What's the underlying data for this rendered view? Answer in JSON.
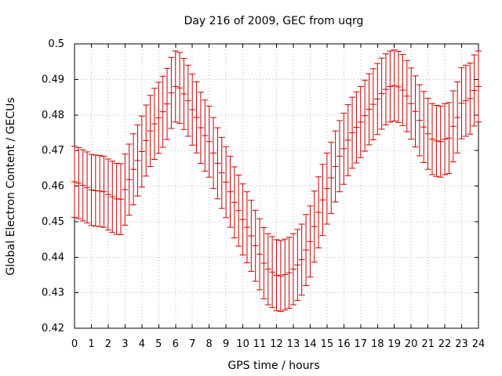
{
  "chart_data": {
    "type": "error_bar",
    "title": "Day 216 of 2009, GEC from uqrg",
    "xlabel": "GPS time / hours",
    "ylabel": "Global Electron Content / GECUs",
    "xlim": [
      0,
      24
    ],
    "ylim": [
      0.42,
      0.5
    ],
    "x_ticks": [
      0,
      1,
      2,
      3,
      4,
      5,
      6,
      7,
      8,
      9,
      10,
      11,
      12,
      13,
      14,
      15,
      16,
      17,
      18,
      19,
      20,
      21,
      22,
      23,
      24
    ],
    "y_ticks": [
      0.42,
      0.43,
      0.44,
      0.45,
      0.46,
      0.47,
      0.48,
      0.49,
      0.5
    ],
    "y_tick_labels": [
      "0.42",
      "0.43",
      "0.44",
      "0.45",
      "0.46",
      "0.47",
      "0.48",
      "0.49",
      "0.5"
    ],
    "grid": true,
    "series_color": "#cc0000",
    "series": [
      {
        "name": "GEC",
        "x": [
          0.0,
          0.25,
          0.5,
          0.75,
          1.0,
          1.25,
          1.5,
          1.75,
          2.0,
          2.25,
          2.5,
          2.75,
          3.0,
          3.25,
          3.5,
          3.75,
          4.0,
          4.25,
          4.5,
          4.75,
          5.0,
          5.25,
          5.5,
          5.75,
          6.0,
          6.25,
          6.5,
          6.75,
          7.0,
          7.25,
          7.5,
          7.75,
          8.0,
          8.25,
          8.5,
          8.75,
          9.0,
          9.25,
          9.5,
          9.75,
          10.0,
          10.25,
          10.5,
          10.75,
          11.0,
          11.25,
          11.5,
          11.75,
          12.0,
          12.25,
          12.5,
          12.75,
          13.0,
          13.25,
          13.5,
          13.75,
          14.0,
          14.25,
          14.5,
          14.75,
          15.0,
          15.25,
          15.5,
          15.75,
          16.0,
          16.25,
          16.5,
          16.75,
          17.0,
          17.25,
          17.5,
          17.75,
          18.0,
          18.25,
          18.5,
          18.75,
          19.0,
          19.25,
          19.5,
          19.75,
          20.0,
          20.25,
          20.5,
          20.75,
          21.0,
          21.25,
          21.5,
          21.75,
          22.0,
          22.25,
          22.5,
          22.75,
          23.0,
          23.25,
          23.5,
          23.75,
          24.0
        ],
        "values": [
          0.4612,
          0.4608,
          0.4602,
          0.4596,
          0.4589,
          0.4587,
          0.4586,
          0.4584,
          0.4576,
          0.457,
          0.4564,
          0.4563,
          0.459,
          0.4618,
          0.4647,
          0.4672,
          0.4697,
          0.4728,
          0.4755,
          0.4775,
          0.4792,
          0.4809,
          0.4831,
          0.4862,
          0.488,
          0.4876,
          0.4859,
          0.484,
          0.4815,
          0.4793,
          0.4764,
          0.4742,
          0.4725,
          0.4693,
          0.4664,
          0.4637,
          0.4611,
          0.4584,
          0.4554,
          0.4531,
          0.4506,
          0.4484,
          0.446,
          0.4432,
          0.4408,
          0.4383,
          0.4366,
          0.4358,
          0.4349,
          0.4347,
          0.4351,
          0.4356,
          0.4366,
          0.4378,
          0.4393,
          0.442,
          0.4444,
          0.4486,
          0.4526,
          0.4561,
          0.4593,
          0.4623,
          0.4655,
          0.4684,
          0.4705,
          0.4729,
          0.475,
          0.4765,
          0.478,
          0.4798,
          0.4816,
          0.483,
          0.4845,
          0.486,
          0.4872,
          0.488,
          0.4883,
          0.4879,
          0.487,
          0.4853,
          0.4832,
          0.481,
          0.4785,
          0.4766,
          0.4747,
          0.4732,
          0.4727,
          0.4725,
          0.4732,
          0.4735,
          0.4768,
          0.4793,
          0.4833,
          0.484,
          0.4846,
          0.4869,
          0.488
        ],
        "errors": [
          0.01,
          0.01,
          0.01,
          0.01,
          0.01,
          0.01,
          0.01,
          0.01,
          0.01,
          0.01,
          0.01,
          0.01,
          0.01,
          0.01,
          0.01,
          0.01,
          0.01,
          0.01,
          0.01,
          0.01,
          0.01,
          0.01,
          0.01,
          0.01,
          0.01,
          0.01,
          0.01,
          0.01,
          0.01,
          0.01,
          0.01,
          0.01,
          0.01,
          0.01,
          0.01,
          0.01,
          0.01,
          0.01,
          0.01,
          0.01,
          0.01,
          0.01,
          0.01,
          0.01,
          0.01,
          0.01,
          0.01,
          0.01,
          0.01,
          0.01,
          0.01,
          0.01,
          0.01,
          0.01,
          0.01,
          0.01,
          0.01,
          0.01,
          0.01,
          0.01,
          0.01,
          0.01,
          0.01,
          0.01,
          0.01,
          0.01,
          0.01,
          0.01,
          0.01,
          0.01,
          0.01,
          0.01,
          0.01,
          0.01,
          0.01,
          0.01,
          0.01,
          0.01,
          0.01,
          0.01,
          0.01,
          0.01,
          0.01,
          0.01,
          0.01,
          0.01,
          0.01,
          0.01,
          0.01,
          0.01,
          0.01,
          0.01,
          0.01,
          0.01,
          0.01,
          0.01,
          0.01
        ]
      }
    ]
  }
}
